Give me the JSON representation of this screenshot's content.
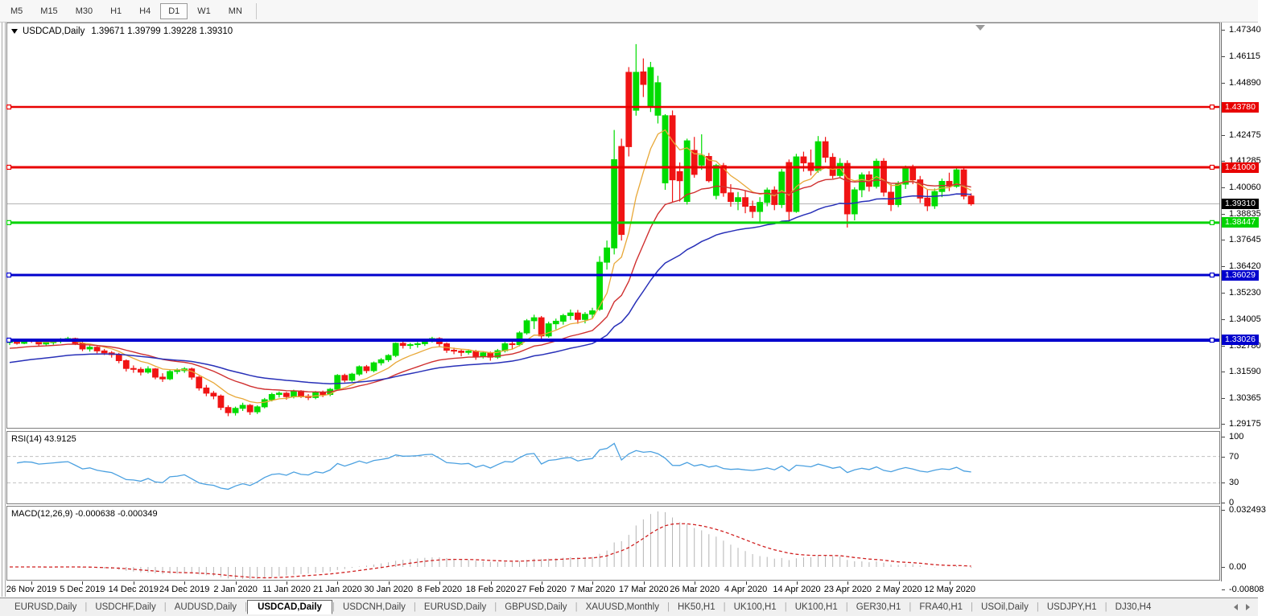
{
  "toolbar": {
    "timeframes": [
      "M5",
      "M15",
      "M30",
      "H1",
      "H4",
      "D1",
      "W1",
      "MN"
    ],
    "active_timeframe": "D1"
  },
  "window": {
    "symbol_title": "USDCAD,Daily",
    "ohlc_text": "1.39671 1.39799 1.39228 1.39310"
  },
  "chart_data": {
    "type": "candlestick",
    "symbol": "USDCAD",
    "timeframe": "Daily",
    "last_candle": {
      "open": 1.39671,
      "high": 1.39799,
      "low": 1.39228,
      "close": 1.3931
    },
    "price_axis_ticks": [
      "1.47340",
      "1.46115",
      "1.44890",
      "1.42475",
      "1.41285",
      "1.40060",
      "1.38835",
      "1.37645",
      "1.36420",
      "1.35230",
      "1.34005",
      "1.32780",
      "1.31590",
      "1.30365",
      "1.29175"
    ],
    "price_axis_tick_values": [
      1.4734,
      1.46115,
      1.4489,
      1.42475,
      1.41285,
      1.4006,
      1.38835,
      1.37645,
      1.3642,
      1.3523,
      1.34005,
      1.3278,
      1.3159,
      1.30365,
      1.29175
    ],
    "current_price": {
      "value": 1.3931,
      "label": "1.39310",
      "line_color": "#b4b4b4",
      "badge_color": "#000000"
    },
    "hlines": [
      {
        "price": 1.4378,
        "label": "1.43780",
        "color": "#e80000",
        "width": 2.5
      },
      {
        "price": 1.41,
        "label": "1.41000",
        "color": "#e80000",
        "width": 3
      },
      {
        "price": 1.38447,
        "label": "1.38447",
        "color": "#00d300",
        "width": 3
      },
      {
        "price": 1.36029,
        "label": "1.36029",
        "color": "#0000cd",
        "width": 3
      },
      {
        "price": 1.33026,
        "label": "1.33026",
        "color": "#0000cd",
        "width": 4
      }
    ],
    "date_labels": [
      "26 Nov 2019",
      "5 Dec 2019",
      "14 Dec 2019",
      "24 Dec 2019",
      "2 Jan 2020",
      "11 Jan 2020",
      "21 Jan 2020",
      "30 Jan 2020",
      "8 Feb 2020",
      "18 Feb 2020",
      "27 Feb 2020",
      "7 Mar 2020",
      "17 Mar 2020",
      "26 Mar 2020",
      "4 Apr 2020",
      "14 Apr 2020",
      "23 Apr 2020",
      "2 May 2020",
      "12 May 2020"
    ],
    "candle_colors": {
      "up": "#00dc00",
      "down": "#f01414"
    },
    "moving_averages": [
      {
        "name": "ma-fast",
        "color": "#e8a838"
      },
      {
        "name": "ma-medium",
        "color": "#d03030"
      },
      {
        "name": "ma-slow",
        "color": "#2830b8"
      }
    ],
    "candles": [
      [
        1.3292,
        1.3303,
        1.328,
        1.3296
      ],
      [
        1.3296,
        1.3305,
        1.3282,
        1.3288
      ],
      [
        1.3288,
        1.3308,
        1.3284,
        1.3302
      ],
      [
        1.3302,
        1.331,
        1.329,
        1.33
      ],
      [
        1.33,
        1.3306,
        1.3276,
        1.3285
      ],
      [
        1.3285,
        1.3298,
        1.3278,
        1.3291
      ],
      [
        1.3291,
        1.3304,
        1.3282,
        1.3298
      ],
      [
        1.3298,
        1.3312,
        1.3288,
        1.3305
      ],
      [
        1.3305,
        1.3318,
        1.3296,
        1.331
      ],
      [
        1.331,
        1.3314,
        1.328,
        1.3288
      ],
      [
        1.3288,
        1.3295,
        1.3252,
        1.3262
      ],
      [
        1.3262,
        1.3278,
        1.325,
        1.327
      ],
      [
        1.327,
        1.3275,
        1.3242,
        1.3253
      ],
      [
        1.3253,
        1.3262,
        1.3234,
        1.3244
      ],
      [
        1.3244,
        1.3252,
        1.3222,
        1.3236
      ],
      [
        1.3236,
        1.3244,
        1.3196,
        1.3208
      ],
      [
        1.3208,
        1.3214,
        1.3158,
        1.3172
      ],
      [
        1.3172,
        1.3186,
        1.3152,
        1.3168
      ],
      [
        1.3168,
        1.3178,
        1.314,
        1.3155
      ],
      [
        1.3155,
        1.3182,
        1.3148,
        1.317
      ],
      [
        1.317,
        1.3174,
        1.3122,
        1.3132
      ],
      [
        1.3132,
        1.315,
        1.311,
        1.3124
      ],
      [
        1.3124,
        1.3166,
        1.3118,
        1.3158
      ],
      [
        1.3158,
        1.3172,
        1.3146,
        1.3162
      ],
      [
        1.3162,
        1.3178,
        1.3152,
        1.317
      ],
      [
        1.317,
        1.3176,
        1.312,
        1.3132
      ],
      [
        1.3132,
        1.3138,
        1.307,
        1.3082
      ],
      [
        1.3082,
        1.3096,
        1.3044,
        1.3058
      ],
      [
        1.3058,
        1.3068,
        1.303,
        1.3045
      ],
      [
        1.3045,
        1.3052,
        1.298,
        1.2992
      ],
      [
        1.2992,
        1.3002,
        1.2952,
        1.2968
      ],
      [
        1.2968,
        1.2996,
        1.2955,
        1.2988
      ],
      [
        1.2988,
        1.3014,
        1.2976,
        1.3002
      ],
      [
        1.3002,
        1.3008,
        1.2958,
        1.2972
      ],
      [
        1.2972,
        1.3002,
        1.2962,
        1.2995
      ],
      [
        1.2995,
        1.3036,
        1.2988,
        1.3028
      ],
      [
        1.3028,
        1.306,
        1.302,
        1.3052
      ],
      [
        1.3052,
        1.3066,
        1.3038,
        1.3058
      ],
      [
        1.3058,
        1.3064,
        1.3028,
        1.3042
      ],
      [
        1.3042,
        1.3074,
        1.3034,
        1.3068
      ],
      [
        1.3068,
        1.3072,
        1.3036,
        1.3044
      ],
      [
        1.3044,
        1.3054,
        1.3026,
        1.3038
      ],
      [
        1.3038,
        1.3068,
        1.303,
        1.3062
      ],
      [
        1.3062,
        1.307,
        1.304,
        1.3052
      ],
      [
        1.3052,
        1.3082,
        1.3044,
        1.3076
      ],
      [
        1.3076,
        1.3146,
        1.307,
        1.314
      ],
      [
        1.314,
        1.3148,
        1.3108,
        1.3118
      ],
      [
        1.3118,
        1.3152,
        1.311,
        1.3146
      ],
      [
        1.3146,
        1.3186,
        1.3138,
        1.318
      ],
      [
        1.318,
        1.3188,
        1.315,
        1.3162
      ],
      [
        1.3162,
        1.3204,
        1.3154,
        1.3198
      ],
      [
        1.3198,
        1.322,
        1.3186,
        1.3212
      ],
      [
        1.3212,
        1.3238,
        1.3202,
        1.3232
      ],
      [
        1.3232,
        1.3292,
        1.3224,
        1.3288
      ],
      [
        1.3288,
        1.3296,
        1.3264,
        1.3278
      ],
      [
        1.3278,
        1.329,
        1.3262,
        1.3282
      ],
      [
        1.3282,
        1.3294,
        1.3268,
        1.3286
      ],
      [
        1.3286,
        1.331,
        1.3276,
        1.3304
      ],
      [
        1.3304,
        1.3318,
        1.3292,
        1.331
      ],
      [
        1.331,
        1.3316,
        1.3274,
        1.3286
      ],
      [
        1.3286,
        1.3292,
        1.3244,
        1.3256
      ],
      [
        1.3256,
        1.3268,
        1.3238,
        1.3252
      ],
      [
        1.3252,
        1.3262,
        1.3228,
        1.3246
      ],
      [
        1.3246,
        1.326,
        1.3236,
        1.3252
      ],
      [
        1.3252,
        1.3258,
        1.3212,
        1.3226
      ],
      [
        1.3226,
        1.3252,
        1.3218,
        1.3244
      ],
      [
        1.3244,
        1.325,
        1.3208,
        1.3224
      ],
      [
        1.3224,
        1.3262,
        1.3216,
        1.3254
      ],
      [
        1.3254,
        1.3294,
        1.3246,
        1.3286
      ],
      [
        1.3286,
        1.33,
        1.3262,
        1.3282
      ],
      [
        1.3282,
        1.3344,
        1.3274,
        1.3336
      ],
      [
        1.3336,
        1.34,
        1.3328,
        1.3392
      ],
      [
        1.3392,
        1.342,
        1.3354,
        1.3406
      ],
      [
        1.3406,
        1.3414,
        1.3308,
        1.3322
      ],
      [
        1.3322,
        1.3388,
        1.3314,
        1.3378
      ],
      [
        1.3378,
        1.3402,
        1.3352,
        1.339
      ],
      [
        1.339,
        1.3424,
        1.3374,
        1.3416
      ],
      [
        1.3416,
        1.3444,
        1.3396,
        1.3428
      ],
      [
        1.3428,
        1.3442,
        1.3378,
        1.3398
      ],
      [
        1.3398,
        1.3432,
        1.338,
        1.3422
      ],
      [
        1.3422,
        1.3452,
        1.3404,
        1.3438
      ],
      [
        1.3445,
        1.369,
        1.3438,
        1.3662
      ],
      [
        1.3662,
        1.3762,
        1.3628,
        1.3728
      ],
      [
        1.3728,
        1.4272,
        1.3698,
        1.4135
      ],
      [
        1.4196,
        1.4232,
        1.3762,
        1.379
      ],
      [
        1.4538,
        1.4562,
        1.415,
        1.4195
      ],
      [
        1.4363,
        1.4668,
        1.4338,
        1.4538
      ],
      [
        1.454,
        1.4602,
        1.4424,
        1.4482
      ],
      [
        1.438,
        1.4586,
        1.4355,
        1.456
      ],
      [
        1.434,
        1.4522,
        1.4302,
        1.449
      ],
      [
        1.4028,
        1.4345,
        1.3996,
        1.4338
      ],
      [
        1.4338,
        1.4362,
        1.394,
        1.4042
      ],
      [
        1.408,
        1.4122,
        1.3942,
        1.4038
      ],
      [
        1.3942,
        1.4232,
        1.3928,
        1.4222
      ],
      [
        1.4178,
        1.424,
        1.4052,
        1.4067
      ],
      [
        1.411,
        1.4252,
        1.4088,
        1.4155
      ],
      [
        1.415,
        1.4166,
        1.403,
        1.4038
      ],
      [
        1.397,
        1.4116,
        1.3952,
        1.4108
      ],
      [
        1.4108,
        1.412,
        1.3964,
        1.3982
      ],
      [
        1.3982,
        1.4022,
        1.3918,
        1.3942
      ],
      [
        1.3942,
        1.3986,
        1.3902,
        1.396
      ],
      [
        1.396,
        1.3992,
        1.3888,
        1.392
      ],
      [
        1.392,
        1.3946,
        1.3866,
        1.3896
      ],
      [
        1.3896,
        1.3962,
        1.3845,
        1.3938
      ],
      [
        1.3938,
        1.4006,
        1.392,
        1.3995
      ],
      [
        1.3995,
        1.4012,
        1.3902,
        1.3928
      ],
      [
        1.3928,
        1.4092,
        1.3912,
        1.4078
      ],
      [
        1.4122,
        1.4136,
        1.385,
        1.3896
      ],
      [
        1.3896,
        1.4162,
        1.389,
        1.4148
      ],
      [
        1.4148,
        1.4172,
        1.408,
        1.412
      ],
      [
        1.412,
        1.4182,
        1.4062,
        1.4085
      ],
      [
        1.4085,
        1.4244,
        1.4075,
        1.4218
      ],
      [
        1.4218,
        1.424,
        1.4122,
        1.4146
      ],
      [
        1.4146,
        1.4165,
        1.4048,
        1.4062
      ],
      [
        1.4062,
        1.4142,
        1.405,
        1.4118
      ],
      [
        1.4118,
        1.4132,
        1.3822,
        1.3885
      ],
      [
        1.3885,
        1.4008,
        1.3855,
        1.3996
      ],
      [
        1.3996,
        1.4076,
        1.3962,
        1.4065
      ],
      [
        1.4065,
        1.4082,
        1.3988,
        1.4012
      ],
      [
        1.4012,
        1.414,
        1.4002,
        1.4128
      ],
      [
        1.4128,
        1.4142,
        1.3965,
        1.3985
      ],
      [
        1.3985,
        1.4022,
        1.3898,
        1.3928
      ],
      [
        1.3928,
        1.4036,
        1.3916,
        1.4022
      ],
      [
        1.4022,
        1.4108,
        1.4,
        1.4098
      ],
      [
        1.4098,
        1.4112,
        1.4022,
        1.4042
      ],
      [
        1.4042,
        1.406,
        1.3935,
        1.3958
      ],
      [
        1.3958,
        1.3998,
        1.3898,
        1.3922
      ],
      [
        1.3922,
        1.4002,
        1.3908,
        1.3988
      ],
      [
        1.3988,
        1.4048,
        1.3962,
        1.4035
      ],
      [
        1.4035,
        1.4075,
        1.399,
        1.4012
      ],
      [
        1.4012,
        1.4105,
        1.4005,
        1.4088
      ],
      [
        1.4088,
        1.4098,
        1.3952,
        1.3967
      ],
      [
        1.39671,
        1.39799,
        1.39228,
        1.3931
      ]
    ],
    "indicators": {
      "rsi": {
        "label": "RSI(14)",
        "value": "43.9125",
        "line_color": "#4aa0e0",
        "levels": [
          "100",
          "70",
          "30",
          "0"
        ],
        "level_values": [
          100,
          70,
          30,
          0
        ],
        "dashed_levels": [
          70,
          30
        ]
      },
      "macd": {
        "label": "MACD(12,26,9)",
        "values_text": "-0.000638 -0.000349",
        "histogram_color": "#b4b4b4",
        "signal_color": "#d02020",
        "scale_labels": [
          "0.032493",
          "0.00",
          "-0.00808"
        ],
        "scale_values": [
          0.032493,
          0.0,
          -0.00808
        ]
      }
    }
  },
  "tabs": {
    "items": [
      {
        "label": "EURUSD,Daily",
        "active": false
      },
      {
        "label": "USDCHF,Daily",
        "active": false
      },
      {
        "label": "AUDUSD,Daily",
        "active": false
      },
      {
        "label": "USDCAD,Daily",
        "active": true
      },
      {
        "label": "USDCNH,Daily",
        "active": false
      },
      {
        "label": "EURUSD,Daily",
        "active": false
      },
      {
        "label": "GBPUSD,Daily",
        "active": false
      },
      {
        "label": "XAUUSD,Monthly",
        "active": false
      },
      {
        "label": "HK50,H1",
        "active": false
      },
      {
        "label": "UK100,H1",
        "active": false
      },
      {
        "label": "UK100,H1",
        "active": false
      },
      {
        "label": "GER30,H1",
        "active": false
      },
      {
        "label": "FRA40,H1",
        "active": false
      },
      {
        "label": "USOil,Daily",
        "active": false
      },
      {
        "label": "USDJPY,H1",
        "active": false
      },
      {
        "label": "DJ30,H4",
        "active": false
      }
    ]
  }
}
